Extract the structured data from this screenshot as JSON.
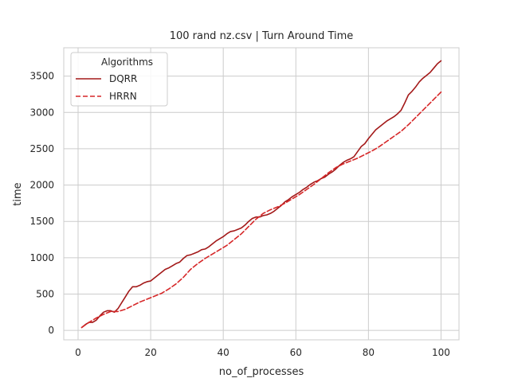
{
  "chart_data": {
    "type": "line",
    "title": "100 rand nz.csv | Turn Around Time",
    "xlabel": "no_of_processes",
    "ylabel": "time",
    "xlim": [
      -3.95,
      104.95
    ],
    "ylim": [
      -130,
      3890
    ],
    "xticks": [
      0,
      20,
      40,
      60,
      80,
      100
    ],
    "yticks": [
      0,
      500,
      1000,
      1500,
      2000,
      2500,
      3000,
      3500
    ],
    "grid": true,
    "legend": {
      "title": "Algorithms",
      "placement": "upper-left"
    },
    "series": [
      {
        "name": "DQRR",
        "color": "#a31919",
        "dash": "solid",
        "x": [
          1,
          2,
          3,
          4,
          5,
          6,
          7,
          8,
          9,
          10,
          11,
          12,
          13,
          14,
          15,
          16,
          17,
          18,
          19,
          20,
          21,
          22,
          23,
          24,
          25,
          26,
          27,
          28,
          29,
          30,
          31,
          32,
          33,
          34,
          35,
          36,
          37,
          38,
          39,
          40,
          41,
          42,
          43,
          44,
          45,
          46,
          47,
          48,
          49,
          50,
          51,
          52,
          53,
          54,
          55,
          56,
          57,
          58,
          59,
          60,
          61,
          62,
          63,
          64,
          65,
          66,
          67,
          68,
          69,
          70,
          71,
          72,
          73,
          74,
          75,
          76,
          77,
          78,
          79,
          80,
          81,
          82,
          83,
          84,
          85,
          86,
          87,
          88,
          89,
          90,
          91,
          92,
          93,
          94,
          95,
          96,
          97,
          98,
          99,
          100
        ],
        "values": [
          40,
          80,
          110,
          110,
          140,
          200,
          250,
          270,
          270,
          250,
          300,
          380,
          460,
          540,
          600,
          600,
          620,
          650,
          670,
          680,
          720,
          760,
          800,
          840,
          860,
          890,
          920,
          940,
          990,
          1030,
          1040,
          1060,
          1080,
          1110,
          1120,
          1150,
          1190,
          1230,
          1260,
          1290,
          1330,
          1360,
          1370,
          1390,
          1410,
          1450,
          1500,
          1540,
          1560,
          1560,
          1580,
          1590,
          1610,
          1640,
          1680,
          1720,
          1770,
          1800,
          1840,
          1870,
          1900,
          1940,
          1970,
          2010,
          2040,
          2060,
          2090,
          2110,
          2150,
          2180,
          2220,
          2270,
          2310,
          2340,
          2360,
          2390,
          2460,
          2530,
          2570,
          2640,
          2700,
          2760,
          2800,
          2840,
          2880,
          2910,
          2940,
          2980,
          3030,
          3130,
          3240,
          3290,
          3350,
          3420,
          3470,
          3510,
          3550,
          3610,
          3670,
          3710
        ],
        "note_values_source": "line values read from plotted curve"
      },
      {
        "name": "HRRN",
        "color": "#d62728",
        "dash": "dashed",
        "x": [
          1,
          3,
          5,
          7,
          9,
          11,
          13,
          15,
          17,
          19,
          21,
          23,
          25,
          27,
          29,
          31,
          33,
          35,
          37,
          39,
          41,
          43,
          45,
          47,
          49,
          51,
          53,
          55,
          57,
          59,
          61,
          63,
          65,
          67,
          69,
          71,
          73,
          75,
          77,
          79,
          81,
          83,
          85,
          87,
          89,
          91,
          93,
          95,
          97,
          99,
          100
        ],
        "values": [
          40,
          110,
          170,
          220,
          260,
          260,
          290,
          340,
          390,
          430,
          470,
          510,
          570,
          640,
          730,
          840,
          920,
          990,
          1050,
          1110,
          1170,
          1250,
          1330,
          1430,
          1530,
          1610,
          1660,
          1700,
          1750,
          1810,
          1870,
          1940,
          2010,
          2090,
          2170,
          2240,
          2290,
          2330,
          2370,
          2420,
          2470,
          2530,
          2600,
          2670,
          2740,
          2830,
          2930,
          3030,
          3130,
          3230,
          3280
        ]
      }
    ]
  }
}
